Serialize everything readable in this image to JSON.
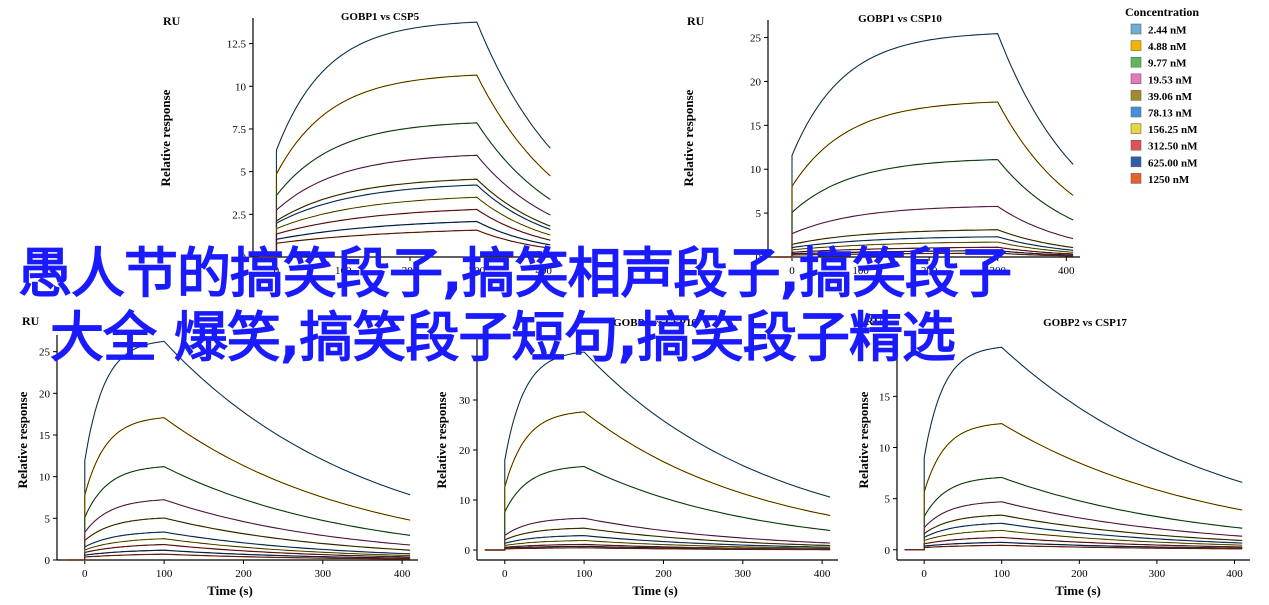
{
  "overlay": {
    "line1": "愚人节的搞笑段子,搞笑相声段子,搞笑段子",
    "line2": "大全 爆笑,搞笑段子短句,搞笑段子精选"
  },
  "legend": {
    "title": "Concentration",
    "items": [
      {
        "label": "2.44 nM",
        "color": "#6baed6"
      },
      {
        "label": "4.88 nM",
        "color": "#f5b400"
      },
      {
        "label": "9.77 nM",
        "color": "#5cb85c"
      },
      {
        "label": "19.53 nM",
        "color": "#e377c2"
      },
      {
        "label": "39.06 nM",
        "color": "#a08a2a"
      },
      {
        "label": "78.13 nM",
        "color": "#4a90d9"
      },
      {
        "label": "156.25 nM",
        "color": "#e8d640"
      },
      {
        "label": "312.50 nM",
        "color": "#e05050"
      },
      {
        "label": "625.00 nM",
        "color": "#2c5fa8"
      },
      {
        "label": "1250 nM",
        "color": "#e8602c"
      }
    ]
  },
  "chart_data": [
    {
      "type": "line",
      "title": "GOBP1 vs CSP5",
      "unit": "RU",
      "ylabel": "Relative response",
      "xlabel": "Time (s)",
      "yticks": [
        "0",
        "2.5",
        "5",
        "7.5",
        "10",
        "12.5"
      ],
      "ylim": [
        0,
        14
      ],
      "xlim": [
        -35,
        420
      ],
      "xticks": [
        0,
        100,
        200,
        300,
        400
      ],
      "assoc_start": 0,
      "assoc_end": 300,
      "plateaus": [
        13.9,
        10.8,
        8.0,
        6.1,
        4.7,
        4.4,
        3.7,
        3.0,
        2.3,
        1.8
      ],
      "dissoc_frac": 0.35
    },
    {
      "type": "line",
      "title": "GOBP1 vs CSP10",
      "unit": "RU",
      "ylabel": "Relative response",
      "xlabel": "Time (s)",
      "yticks": [
        "0",
        "5",
        "10",
        "15",
        "20",
        "25"
      ],
      "ylim": [
        0,
        27
      ],
      "xlim": [
        -35,
        420
      ],
      "xticks": [
        0,
        100,
        200,
        300,
        400
      ],
      "assoc_start": 0,
      "assoc_end": 300,
      "plateaus": [
        25.7,
        17.9,
        11.3,
        5.9,
        3.2,
        2.4,
        1.8,
        1.2,
        0.8,
        0.5
      ],
      "dissoc_frac": 0.4
    },
    {
      "type": "line",
      "title": "",
      "unit": "RU",
      "ylabel": "Relative response",
      "xlabel": "Time (s)",
      "yticks": [
        "0",
        "5",
        "10",
        "15",
        "20",
        "25"
      ],
      "ylim": [
        0,
        27
      ],
      "xlim": [
        -35,
        420
      ],
      "xticks": [
        0,
        100,
        200,
        300,
        400
      ],
      "assoc_start": 0,
      "assoc_end": 100,
      "plateaus": [
        26.5,
        17.3,
        11.4,
        7.4,
        5.2,
        3.5,
        2.7,
        2.0,
        1.3,
        0.8
      ],
      "dissoc_frac": 0.55
    },
    {
      "type": "line",
      "title": "GOBP1 vs CSP10",
      "unit": "RU",
      "ylabel": "Relative response",
      "xlabel": "Time (s)",
      "yticks": [
        "0",
        "10",
        "20",
        "30"
      ],
      "ylim": [
        -2,
        43
      ],
      "xlim": [
        -35,
        420
      ],
      "xticks": [
        0,
        100,
        200,
        300,
        400
      ],
      "assoc_start": 0,
      "assoc_end": 100,
      "plateaus": [
        40,
        28,
        17,
        6.5,
        4.5,
        3.0,
        2.0,
        1.2,
        0.8,
        0.5
      ],
      "dissoc_frac": 0.6
    },
    {
      "type": "line",
      "title": "GOBP2 vs CSP17",
      "unit": "RU",
      "ylabel": "Relative response",
      "xlabel": "Time (s)",
      "yticks": [
        "0",
        "5",
        "10",
        "15"
      ],
      "ylim": [
        -1,
        21
      ],
      "xlim": [
        -35,
        420
      ],
      "xticks": [
        0,
        100,
        200,
        300,
        400
      ],
      "assoc_start": 0,
      "assoc_end": 100,
      "plateaus": [
        20,
        12.5,
        7.2,
        4.8,
        3.5,
        2.7,
        2.0,
        1.3,
        0.8,
        0.5
      ],
      "dissoc_frac": 0.5
    }
  ]
}
